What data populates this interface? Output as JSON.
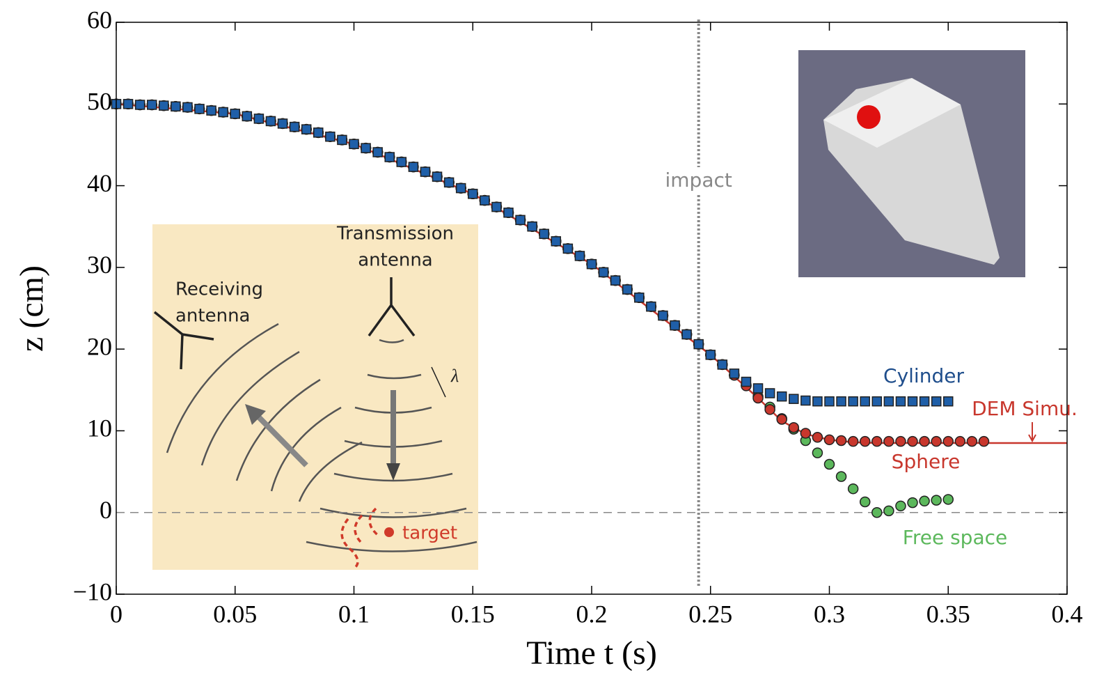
{
  "chart_data": {
    "type": "scatter",
    "xlabel": "Time t (s)",
    "ylabel": "z (cm)",
    "xlim": [
      0,
      0.4
    ],
    "ylim": [
      -10,
      60
    ],
    "xticks": [
      0,
      0.05,
      0.1,
      0.15,
      0.2,
      0.25,
      0.3,
      0.35,
      0.4
    ],
    "yticks": [
      {
        "value": -10,
        "label": "−10"
      },
      0,
      10,
      20,
      30,
      40,
      50,
      60
    ],
    "impact": {
      "x": 0.245,
      "label": "impact"
    },
    "zero_line": 0,
    "series": [
      {
        "name": "Free space",
        "color": "#5cb85c",
        "marker": "circle",
        "x": [
          0,
          0.005,
          0.01,
          0.015,
          0.02,
          0.025,
          0.03,
          0.035,
          0.04,
          0.045,
          0.05,
          0.055,
          0.06,
          0.065,
          0.07,
          0.075,
          0.08,
          0.085,
          0.09,
          0.095,
          0.1,
          0.105,
          0.11,
          0.115,
          0.12,
          0.125,
          0.13,
          0.135,
          0.14,
          0.145,
          0.15,
          0.155,
          0.16,
          0.165,
          0.17,
          0.175,
          0.18,
          0.185,
          0.19,
          0.195,
          0.2,
          0.205,
          0.21,
          0.215,
          0.22,
          0.225,
          0.23,
          0.235,
          0.24,
          0.245,
          0.25,
          0.255,
          0.26,
          0.265,
          0.27,
          0.275,
          0.28,
          0.285,
          0.29,
          0.295,
          0.3,
          0.305,
          0.31,
          0.315,
          0.32,
          0.325,
          0.33,
          0.335,
          0.34,
          0.345,
          0.35
        ],
        "values": [
          50,
          50,
          49.9,
          49.9,
          49.8,
          49.7,
          49.6,
          49.4,
          49.2,
          49,
          48.8,
          48.5,
          48.2,
          47.9,
          47.6,
          47.2,
          46.9,
          46.5,
          46,
          45.6,
          45.1,
          44.6,
          44.1,
          43.5,
          42.9,
          42.3,
          41.7,
          41.1,
          40.4,
          39.7,
          39,
          38.2,
          37.4,
          36.7,
          35.8,
          35,
          34.1,
          33.2,
          32.3,
          31.4,
          30.4,
          29.4,
          28.4,
          27.3,
          26.3,
          25.2,
          24.1,
          22.9,
          21.8,
          20.6,
          19.3,
          18.1,
          16.8,
          15.6,
          14.2,
          12.9,
          11.5,
          10.2,
          8.8,
          7.3,
          5.9,
          4.4,
          2.9,
          1.3,
          0,
          0.2,
          0.8,
          1.2,
          1.4,
          1.5,
          1.6
        ]
      },
      {
        "name": "Sphere",
        "color": "#c8372d",
        "marker": "circle",
        "x": [
          0,
          0.005,
          0.01,
          0.015,
          0.02,
          0.025,
          0.03,
          0.035,
          0.04,
          0.045,
          0.05,
          0.055,
          0.06,
          0.065,
          0.07,
          0.075,
          0.08,
          0.085,
          0.09,
          0.095,
          0.1,
          0.105,
          0.11,
          0.115,
          0.12,
          0.125,
          0.13,
          0.135,
          0.14,
          0.145,
          0.15,
          0.155,
          0.16,
          0.165,
          0.17,
          0.175,
          0.18,
          0.185,
          0.19,
          0.195,
          0.2,
          0.205,
          0.21,
          0.215,
          0.22,
          0.225,
          0.23,
          0.235,
          0.24,
          0.245,
          0.25,
          0.255,
          0.26,
          0.265,
          0.27,
          0.275,
          0.28,
          0.285,
          0.29,
          0.295,
          0.3,
          0.305,
          0.31,
          0.315,
          0.32,
          0.325,
          0.33,
          0.335,
          0.34,
          0.345,
          0.35,
          0.355,
          0.36,
          0.365
        ],
        "values": [
          50,
          50,
          49.9,
          49.9,
          49.8,
          49.7,
          49.6,
          49.4,
          49.2,
          49,
          48.8,
          48.5,
          48.2,
          47.9,
          47.6,
          47.2,
          46.9,
          46.5,
          46,
          45.6,
          45.1,
          44.6,
          44.1,
          43.5,
          42.9,
          42.3,
          41.7,
          41.1,
          40.4,
          39.7,
          39,
          38.2,
          37.4,
          36.7,
          35.8,
          35,
          34.1,
          33.2,
          32.3,
          31.4,
          30.4,
          29.4,
          28.4,
          27.3,
          26.3,
          25.2,
          24.1,
          22.9,
          21.8,
          20.6,
          19.3,
          18.1,
          16.8,
          15.5,
          14,
          12.6,
          11.4,
          10.4,
          9.7,
          9.2,
          8.9,
          8.8,
          8.7,
          8.7,
          8.7,
          8.7,
          8.7,
          8.7,
          8.7,
          8.7,
          8.7,
          8.7,
          8.7,
          8.7
        ]
      },
      {
        "name": "Cylinder",
        "color": "#1f5fa8",
        "marker": "square",
        "x": [
          0,
          0.005,
          0.01,
          0.015,
          0.02,
          0.025,
          0.03,
          0.035,
          0.04,
          0.045,
          0.05,
          0.055,
          0.06,
          0.065,
          0.07,
          0.075,
          0.08,
          0.085,
          0.09,
          0.095,
          0.1,
          0.105,
          0.11,
          0.115,
          0.12,
          0.125,
          0.13,
          0.135,
          0.14,
          0.145,
          0.15,
          0.155,
          0.16,
          0.165,
          0.17,
          0.175,
          0.18,
          0.185,
          0.19,
          0.195,
          0.2,
          0.205,
          0.21,
          0.215,
          0.22,
          0.225,
          0.23,
          0.235,
          0.24,
          0.245,
          0.25,
          0.255,
          0.26,
          0.265,
          0.27,
          0.275,
          0.28,
          0.285,
          0.29,
          0.295,
          0.3,
          0.305,
          0.31,
          0.315,
          0.32,
          0.325,
          0.33,
          0.335,
          0.34,
          0.345,
          0.35
        ],
        "values": [
          50,
          50,
          49.9,
          49.9,
          49.8,
          49.7,
          49.6,
          49.4,
          49.2,
          49,
          48.8,
          48.5,
          48.2,
          47.9,
          47.6,
          47.2,
          46.9,
          46.5,
          46,
          45.6,
          45.1,
          44.6,
          44.1,
          43.5,
          42.9,
          42.3,
          41.7,
          41.1,
          40.4,
          39.7,
          39,
          38.2,
          37.4,
          36.7,
          35.8,
          35,
          34.1,
          33.2,
          32.3,
          31.4,
          30.4,
          29.4,
          28.4,
          27.3,
          26.3,
          25.2,
          24.1,
          22.9,
          21.8,
          20.6,
          19.3,
          18.1,
          17,
          16,
          15.2,
          14.6,
          14.2,
          13.9,
          13.7,
          13.6,
          13.6,
          13.6,
          13.6,
          13.6,
          13.6,
          13.6,
          13.6,
          13.6,
          13.6,
          13.6,
          13.6
        ]
      },
      {
        "name": "DEM Simu.",
        "color": "#c8372d",
        "marker": "line",
        "x": [
          0,
          0.05,
          0.1,
          0.15,
          0.2,
          0.25,
          0.27,
          0.28,
          0.29,
          0.3,
          0.31,
          0.32,
          0.4
        ],
        "values": [
          50,
          48.8,
          45.1,
          39,
          30.4,
          19.3,
          14,
          11.2,
          9.6,
          8.9,
          8.6,
          8.5,
          8.5
        ]
      }
    ],
    "schematic": {
      "receiving": [
        "Receiving",
        "antenna"
      ],
      "transmission": [
        "Transmission",
        "antenna"
      ],
      "wavelength": "λ",
      "target": "target"
    }
  }
}
